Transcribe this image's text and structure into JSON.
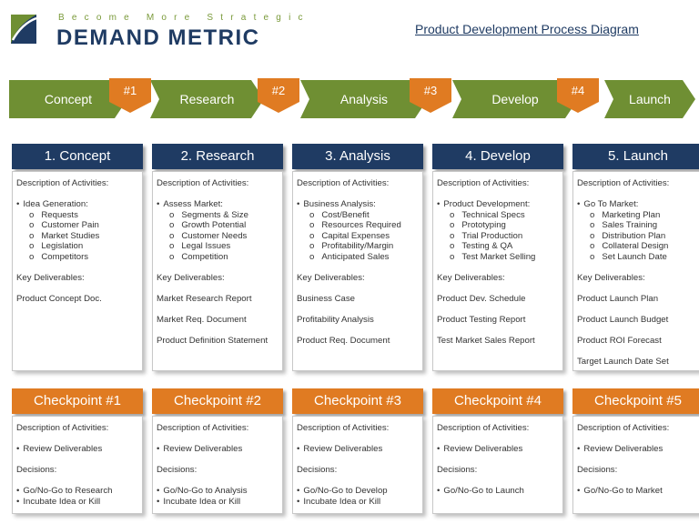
{
  "header": {
    "tagline": "Become More Strategic",
    "brand": "DEMAND METRIC",
    "title": "Product Development Process Diagram"
  },
  "colors": {
    "navy": "#1f3b63",
    "green": "#6f8f33",
    "orange": "#e07b22"
  },
  "process": {
    "stages": [
      "Concept",
      "Research",
      "Analysis",
      "Develop",
      "Launch"
    ],
    "markers": [
      "#1",
      "#2",
      "#3",
      "#4"
    ]
  },
  "phases": [
    {
      "title": "1. Concept",
      "desc_label": "Description of Activities:",
      "activity": "Idea Generation:",
      "items": [
        "Requests",
        "Customer Pain",
        "Market Studies",
        "Legislation",
        "Competitors"
      ],
      "deliverables_label": "Key Deliverables:",
      "deliverables": [
        "Product Concept Doc."
      ]
    },
    {
      "title": "2. Research",
      "desc_label": "Description of Activities:",
      "activity": "Assess Market:",
      "items": [
        "Segments & Size",
        "Growth Potential",
        "Customer Needs",
        "Legal Issues",
        "Competition"
      ],
      "deliverables_label": "Key Deliverables:",
      "deliverables": [
        "Market Research Report",
        "Market Req. Document",
        "Product Definition Statement"
      ]
    },
    {
      "title": "3. Analysis",
      "desc_label": "Description of Activities:",
      "activity": "Business Analysis:",
      "items": [
        "Cost/Benefit",
        "Resources Required",
        "Capital Expenses",
        "Profitability/Margin",
        "Anticipated Sales"
      ],
      "deliverables_label": "Key Deliverables:",
      "deliverables": [
        "Business Case",
        "Profitability Analysis",
        "Product Req. Document"
      ]
    },
    {
      "title": "4. Develop",
      "desc_label": "Description of Activities:",
      "activity": "Product Development:",
      "items": [
        "Technical Specs",
        "Prototyping",
        "Trial Production",
        "Testing & QA",
        "Test Market Selling"
      ],
      "deliverables_label": "Key Deliverables:",
      "deliverables": [
        "Product Dev. Schedule",
        "Product Testing Report",
        "Test Market Sales Report"
      ]
    },
    {
      "title": "5. Launch",
      "desc_label": "Description of Activities:",
      "activity": "Go To Market:",
      "items": [
        "Marketing Plan",
        "Sales Training",
        "Distribution Plan",
        "Collateral Design",
        "Set Launch Date"
      ],
      "deliverables_label": "Key Deliverables:",
      "deliverables": [
        "Product Launch Plan",
        "Product Launch Budget",
        "Product ROI Forecast",
        "Target Launch Date Set"
      ]
    }
  ],
  "checkpoints": [
    {
      "title": "Checkpoint #1",
      "desc_label": "Description of Activities:",
      "activity": "Review Deliverables",
      "decisions_label": "Decisions:",
      "decisions": [
        "Go/No-Go to Research",
        "Incubate Idea or Kill"
      ]
    },
    {
      "title": "Checkpoint #2",
      "desc_label": "Description of Activities:",
      "activity": "Review Deliverables",
      "decisions_label": "Decisions:",
      "decisions": [
        "Go/No-Go to Analysis",
        "Incubate Idea or Kill"
      ]
    },
    {
      "title": "Checkpoint #3",
      "desc_label": "Description of Activities:",
      "activity": "Review Deliverables",
      "decisions_label": "Decisions:",
      "decisions": [
        "Go/No-Go to Develop",
        "Incubate Idea or Kill"
      ]
    },
    {
      "title": "Checkpoint #4",
      "desc_label": "Description of Activities:",
      "activity": "Review Deliverables",
      "decisions_label": "Decisions:",
      "decisions": [
        "Go/No-Go to Launch"
      ]
    },
    {
      "title": "Checkpoint #5",
      "desc_label": "Description of Activities:",
      "activity": "Review Deliverables",
      "decisions_label": "Decisions:",
      "decisions": [
        "Go/No-Go to Market"
      ]
    }
  ]
}
